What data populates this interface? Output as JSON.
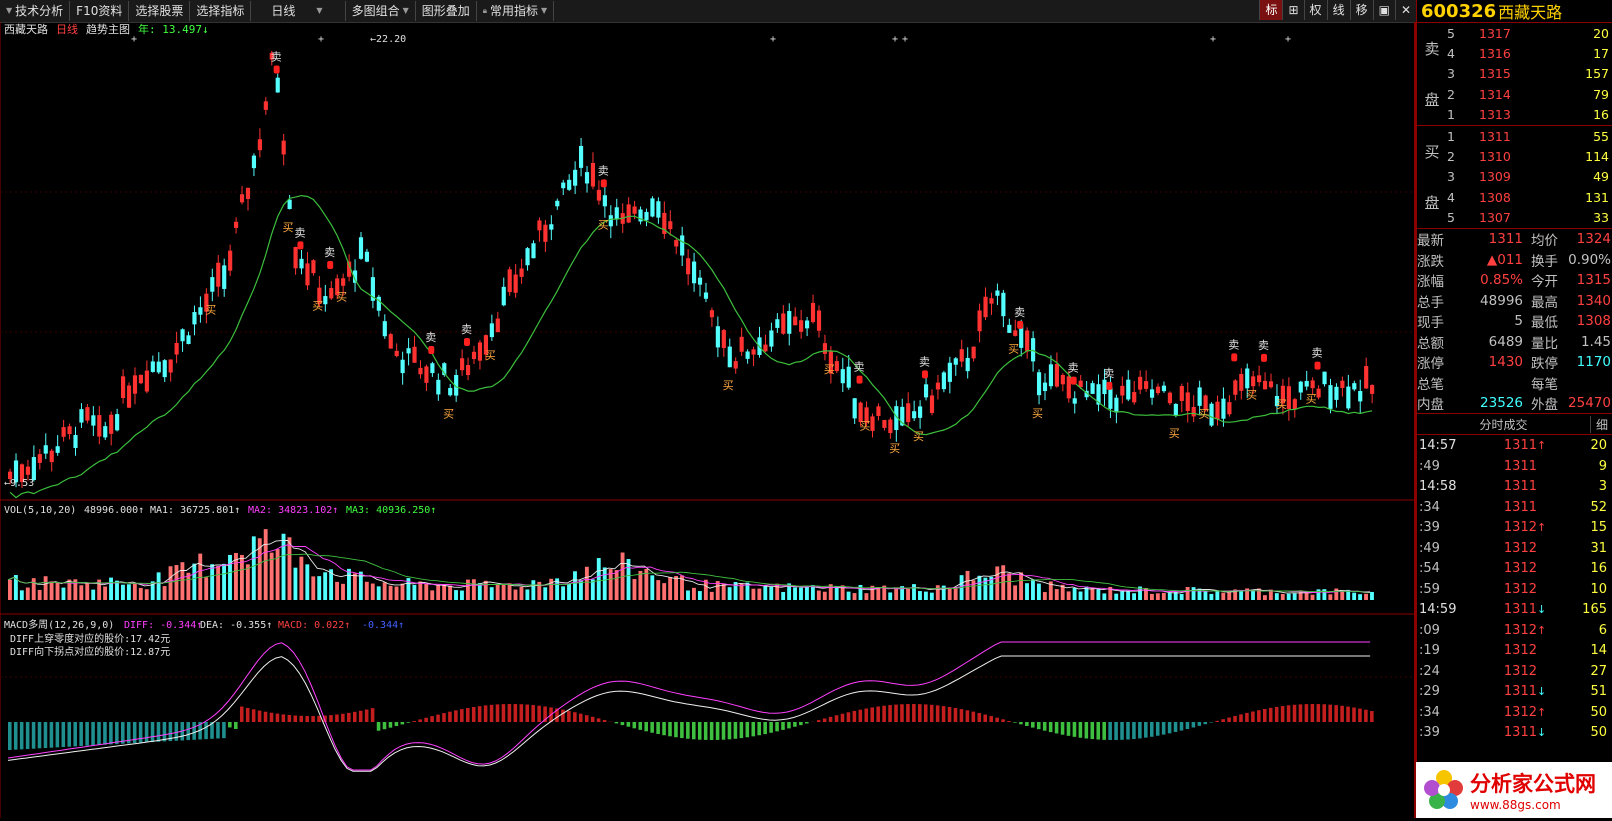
{
  "toolbar": {
    "items": [
      "技术分析",
      "F10资料",
      "选择股票",
      "选择指标",
      "日线",
      "多图组合",
      "图形叠加",
      "常用指标"
    ],
    "right_items": [
      "标",
      "⊞",
      "权",
      "线",
      "移",
      "▣",
      "✕"
    ]
  },
  "chart": {
    "price_header": {
      "name": "西藏天路",
      "period": "日线",
      "main": "趋势主图",
      "indicator": "年: 13.497↓"
    },
    "high_label": "22.20",
    "low_label": "9.53",
    "buy_label": "买",
    "sell_label": "卖",
    "vol_header": {
      "name": "VOL(5,10,20)",
      "v": "48996.000↑",
      "ma1": "MA1: 36725.801↑",
      "ma2": "MA2: 34823.102↑",
      "ma3": "MA3: 40936.250↑"
    },
    "macd_header": {
      "name": "MACD多周(12,26,9,0)",
      "diff": "DIFF: -0.344↑",
      "dea": "DEA: -0.355↑",
      "macd": "MACD: 0.022↑",
      "extra": "-0.344↑"
    },
    "macd_notes": [
      "DIFF上穿零度对应的股价:17.42元",
      "DIFF向下拐点对应的股价:12.87元"
    ]
  },
  "quote": {
    "code": "600326",
    "name": "西藏天路",
    "sell_label": [
      "卖",
      "盘"
    ],
    "buy_label": [
      "买",
      "盘"
    ],
    "sells": [
      {
        "lv": "5",
        "px": "1317",
        "vol": "20"
      },
      {
        "lv": "4",
        "px": "1316",
        "vol": "17"
      },
      {
        "lv": "3",
        "px": "1315",
        "vol": "157"
      },
      {
        "lv": "2",
        "px": "1314",
        "vol": "79"
      },
      {
        "lv": "1",
        "px": "1313",
        "vol": "16"
      }
    ],
    "buys": [
      {
        "lv": "1",
        "px": "1311",
        "vol": "55"
      },
      {
        "lv": "2",
        "px": "1310",
        "vol": "114"
      },
      {
        "lv": "3",
        "px": "1309",
        "vol": "49"
      },
      {
        "lv": "4",
        "px": "1308",
        "vol": "131"
      },
      {
        "lv": "5",
        "px": "1307",
        "vol": "33"
      }
    ],
    "stats": [
      {
        "l1": "最新",
        "v1": "1311",
        "c1": "red",
        "l2": "均价",
        "v2": "1324",
        "c2": "red"
      },
      {
        "l1": "涨跌",
        "v1": "▲011",
        "c1": "red",
        "l2": "换手",
        "v2": "0.90%",
        "c2": ""
      },
      {
        "l1": "涨幅",
        "v1": "0.85%",
        "c1": "red",
        "l2": "今开",
        "v2": "1315",
        "c2": "red"
      },
      {
        "l1": "总手",
        "v1": "48996",
        "c1": "",
        "l2": "最高",
        "v2": "1340",
        "c2": "red"
      },
      {
        "l1": "现手",
        "v1": "5",
        "c1": "",
        "l2": "最低",
        "v2": "1308",
        "c2": "red"
      },
      {
        "l1": "总额",
        "v1": "6489",
        "c1": "",
        "l2": "量比",
        "v2": "1.45",
        "c2": ""
      },
      {
        "l1": "涨停",
        "v1": "1430",
        "c1": "red",
        "l2": "跌停",
        "v2": "1170",
        "c2": "cyn"
      },
      {
        "l1": "总笔",
        "v1": "",
        "c1": "",
        "l2": "每笔",
        "v2": "",
        "c2": ""
      },
      {
        "l1": "内盘",
        "v1": "23526",
        "c1": "cyn",
        "l2": "外盘",
        "v2": "25470",
        "c2": "red"
      }
    ],
    "ticks_title": "分时成交",
    "ticks_detail": "细",
    "ticks": [
      {
        "t": "14:57",
        "big": true,
        "p": "1311",
        "a": "↑",
        "ac": "red",
        "v": "20",
        "vc": "yel"
      },
      {
        "t": ":49",
        "big": false,
        "p": "1311",
        "a": "",
        "ac": "",
        "v": "9",
        "vc": "yel"
      },
      {
        "t": "14:58",
        "big": true,
        "p": "1311",
        "a": "",
        "ac": "",
        "v": "3",
        "vc": "yel"
      },
      {
        "t": ":34",
        "big": false,
        "p": "1311",
        "a": "",
        "ac": "",
        "v": "52",
        "vc": "yel"
      },
      {
        "t": ":39",
        "big": false,
        "p": "1312",
        "a": "↑",
        "ac": "red",
        "v": "15",
        "vc": "yel"
      },
      {
        "t": ":49",
        "big": false,
        "p": "1312",
        "a": "",
        "ac": "",
        "v": "31",
        "vc": "yel"
      },
      {
        "t": ":54",
        "big": false,
        "p": "1312",
        "a": "",
        "ac": "",
        "v": "16",
        "vc": "yel"
      },
      {
        "t": ":59",
        "big": false,
        "p": "1312",
        "a": "",
        "ac": "",
        "v": "10",
        "vc": "yel"
      },
      {
        "t": "14:59",
        "big": true,
        "p": "1311",
        "a": "↓",
        "ac": "cyn",
        "v": "165",
        "vc": "yel"
      },
      {
        "t": ":09",
        "big": false,
        "p": "1312",
        "a": "↑",
        "ac": "red",
        "v": "6",
        "vc": "yel"
      },
      {
        "t": ":19",
        "big": false,
        "p": "1312",
        "a": "",
        "ac": "",
        "v": "14",
        "vc": "yel"
      },
      {
        "t": ":24",
        "big": false,
        "p": "1312",
        "a": "",
        "ac": "",
        "v": "27",
        "vc": "yel"
      },
      {
        "t": ":29",
        "big": false,
        "p": "1311",
        "a": "↓",
        "ac": "cyn",
        "v": "51",
        "vc": "yel"
      },
      {
        "t": ":34",
        "big": false,
        "p": "1312",
        "a": "↑",
        "ac": "red",
        "v": "50",
        "vc": "yel"
      },
      {
        "t": ":39",
        "big": false,
        "p": "1311",
        "a": "↓",
        "ac": "cyn",
        "v": "50",
        "vc": "yel"
      }
    ]
  },
  "logo": {
    "title": "分析家公式网",
    "url": "www.88gs.com"
  },
  "colors": {
    "up": "#ff3232",
    "down": "#54ffff",
    "ma": "#40c040",
    "grid": "#8b0000",
    "yellow": "#ffff40"
  }
}
